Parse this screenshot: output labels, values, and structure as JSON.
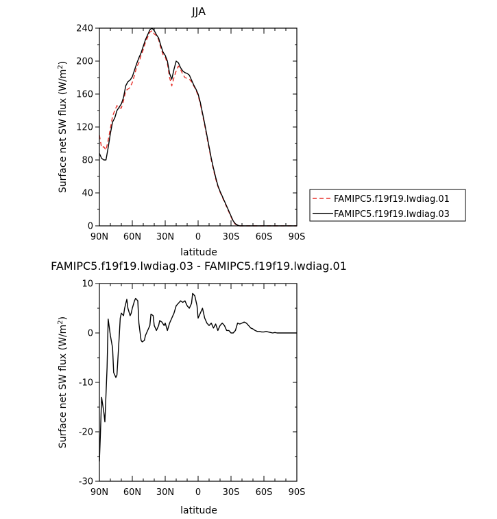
{
  "chart_data": [
    {
      "type": "line",
      "title": "JJA",
      "xlabel": "latitude",
      "ylabel_main": "Surface net SW flux (W/m",
      "ylabel_sup": "2",
      "ylabel_close": ")",
      "xlim": [
        90,
        -90
      ],
      "ylim": [
        0,
        240
      ],
      "x_ticks": [
        90,
        60,
        30,
        0,
        -30,
        -60,
        -90
      ],
      "x_tick_labels": [
        "90N",
        "60N",
        "30N",
        "0",
        "30S",
        "60S",
        "90S"
      ],
      "y_ticks": [
        0,
        40,
        80,
        120,
        160,
        200,
        240
      ],
      "y_tick_labels": [
        "0",
        "40",
        "80",
        "120",
        "160",
        "200",
        "240"
      ],
      "legend_position": "right",
      "series": [
        {
          "name": "FAMIPC5.f19f19.lwdiag.01",
          "color": "#e8302a",
          "dash": "dashed",
          "x": [
            90,
            88,
            86,
            84,
            82,
            80,
            78,
            76,
            74,
            72,
            70,
            68,
            66,
            64,
            62,
            60,
            58,
            56,
            54,
            52,
            50,
            48,
            46,
            44,
            42,
            40,
            38,
            36,
            34,
            32,
            30,
            28,
            26,
            24,
            22,
            20,
            18,
            16,
            14,
            12,
            10,
            8,
            6,
            4,
            2,
            0,
            -2,
            -4,
            -6,
            -8,
            -10,
            -12,
            -14,
            -16,
            -18,
            -20,
            -22,
            -24,
            -26,
            -28,
            -30,
            -32,
            -34,
            -36,
            -38,
            -40,
            -42,
            -44,
            -46,
            -48,
            -50,
            -52,
            -54,
            -56,
            -58,
            -60,
            -62,
            -64,
            -66,
            -68,
            -70,
            -75,
            -80,
            -85,
            -90
          ],
          "y": [
            110,
            95,
            96,
            92,
            104,
            118,
            133,
            140,
            146,
            143,
            143,
            152,
            164,
            166,
            168,
            174,
            183,
            193,
            198,
            207,
            214,
            223,
            229,
            235,
            237,
            233,
            231,
            226,
            216,
            208,
            205,
            197,
            180,
            170,
            180,
            188,
            194,
            190,
            184,
            180,
            179,
            178,
            175,
            170,
            165,
            158,
            148,
            135,
            122,
            108,
            94,
            80,
            68,
            57,
            48,
            41,
            35,
            29,
            23,
            17,
            11,
            5,
            2,
            0.5,
            0,
            0,
            0,
            0,
            0,
            0,
            0,
            0,
            0,
            0,
            0,
            0,
            0,
            0,
            0,
            0,
            0,
            0,
            0,
            0,
            0
          ]
        },
        {
          "name": "FAMIPC5.f19f19.lwdiag.03",
          "color": "#000000",
          "dash": "solid",
          "x": [
            90,
            88,
            86,
            84,
            82,
            80,
            78,
            76,
            74,
            72,
            70,
            68,
            66,
            64,
            62,
            60,
            58,
            56,
            54,
            52,
            50,
            48,
            46,
            44,
            42,
            40,
            38,
            36,
            34,
            32,
            30,
            28,
            26,
            24,
            22,
            20,
            18,
            16,
            14,
            12,
            10,
            8,
            6,
            4,
            2,
            0,
            -2,
            -4,
            -6,
            -8,
            -10,
            -12,
            -14,
            -16,
            -18,
            -20,
            -22,
            -24,
            -26,
            -28,
            -30,
            -32,
            -34,
            -36,
            -38,
            -40,
            -42,
            -44,
            -46,
            -48,
            -50,
            -52,
            -54,
            -56,
            -58,
            -60,
            -62,
            -64,
            -66,
            -68,
            -70,
            -75,
            -80,
            -85,
            -90
          ],
          "y": [
            88,
            82,
            80,
            80,
            95,
            112,
            126,
            131,
            140,
            144,
            148,
            156,
            170,
            175,
            177,
            181,
            189,
            197,
            204,
            210,
            218,
            226,
            232,
            238,
            240,
            237,
            232,
            228,
            219,
            211,
            207,
            200,
            185,
            178,
            190,
            200,
            198,
            192,
            188,
            186,
            185,
            183,
            177,
            171,
            166,
            160,
            150,
            137,
            124,
            110,
            96,
            82,
            70,
            59,
            49,
            42,
            36,
            30,
            24,
            18,
            12,
            6,
            2.5,
            0.8,
            0,
            0,
            0,
            0,
            0,
            0,
            0,
            0,
            0,
            0,
            0,
            0,
            0,
            0,
            0,
            0,
            0,
            0,
            0,
            0,
            0
          ]
        }
      ]
    },
    {
      "type": "line",
      "title": "FAMIPC5.f19f19.lwdiag.03 - FAMIPC5.f19f19.lwdiag.01",
      "xlabel": "latitude",
      "ylabel_main": "Surface net SW flux (W/m",
      "ylabel_sup": "2",
      "ylabel_close": ")",
      "xlim": [
        90,
        -90
      ],
      "ylim": [
        -30,
        10
      ],
      "x_ticks": [
        90,
        60,
        30,
        0,
        -30,
        -60,
        -90
      ],
      "x_tick_labels": [
        "90N",
        "60N",
        "30N",
        "0",
        "30S",
        "60S",
        "90S"
      ],
      "y_ticks": [
        -30,
        -20,
        -10,
        0,
        10
      ],
      "y_tick_labels": [
        "-30",
        "-20",
        "-10",
        "0",
        "10"
      ],
      "series": [
        {
          "color": "#000000",
          "dash": "solid",
          "x": [
            90,
            89,
            88,
            86,
            85,
            83,
            82,
            80,
            78,
            77,
            75,
            74,
            72,
            71,
            70,
            68,
            67,
            65,
            64,
            62,
            61,
            60,
            58,
            57,
            55,
            54,
            52,
            51,
            49,
            48,
            46,
            44,
            43,
            41,
            40,
            38,
            36,
            35,
            33,
            31,
            30,
            28,
            26,
            24,
            22,
            20,
            18,
            16,
            14,
            12,
            10,
            8,
            6,
            5,
            3,
            1,
            0,
            -2,
            -4,
            -6,
            -8,
            -10,
            -12,
            -14,
            -16,
            -18,
            -20,
            -22,
            -24,
            -26,
            -28,
            -30,
            -32,
            -34,
            -36,
            -38,
            -40,
            -42,
            -44,
            -46,
            -48,
            -50,
            -52,
            -54,
            -56,
            -58,
            -60,
            -62,
            -64,
            -66,
            -68,
            -70,
            -72,
            -74,
            -76,
            -78,
            -80,
            -85,
            -90
          ],
          "y": [
            -26,
            -20,
            -13,
            -16,
            -18,
            -7,
            2.8,
            -0.5,
            -3,
            -8,
            -9,
            -8.5,
            -1,
            3,
            4,
            3.5,
            5,
            6.8,
            5,
            3.5,
            4,
            5,
            6.5,
            7,
            6.5,
            2,
            -1.5,
            -1.8,
            -1.5,
            -0.5,
            0.5,
            1.5,
            3.8,
            3.5,
            1.5,
            0.5,
            1.5,
            2.5,
            2.2,
            1.5,
            2,
            0.5,
            2,
            3,
            4,
            5.5,
            6,
            6.5,
            6.2,
            6.5,
            5.5,
            5,
            6,
            8,
            7.5,
            5.5,
            3,
            4,
            5,
            3,
            2,
            1.5,
            2,
            1,
            1.8,
            0.5,
            1.5,
            2,
            1.5,
            0.5,
            0.5,
            0,
            0,
            0.5,
            2,
            1.8,
            2,
            2.2,
            2,
            1.5,
            1,
            0.8,
            0.5,
            0.3,
            0.3,
            0.2,
            0.2,
            0.3,
            0.2,
            0.1,
            0,
            0.1,
            0,
            0,
            0,
            0,
            0,
            0,
            0
          ]
        }
      ]
    }
  ]
}
